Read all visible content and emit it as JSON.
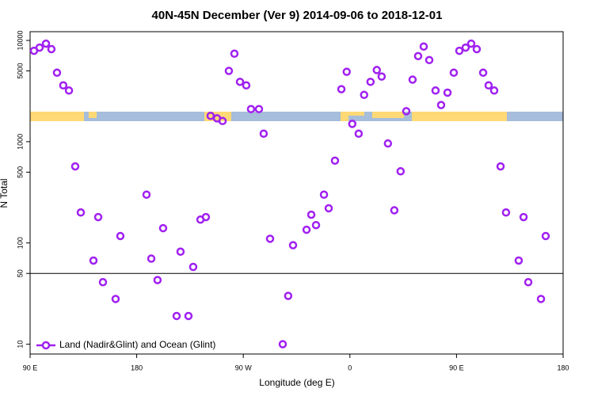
{
  "chart_data": {
    "type": "scatter",
    "title": "40N-45N December (Ver 9)   2014-09-06 to 2018-12-01",
    "x_label": "Longitude (deg E)",
    "y_label": "N Total",
    "log_y": true,
    "hline": 50,
    "legend_position": "bottom-left",
    "xlim": [
      -270,
      180
    ],
    "xticks": [
      {
        "value": -270,
        "label": "90 E"
      },
      {
        "value": -180,
        "label": "180"
      },
      {
        "value": -90,
        "label": "90 W"
      },
      0,
      {
        "value": 90,
        "label": "90 E"
      },
      {
        "value": 180,
        "label": "180"
      }
    ],
    "ylim": [
      8,
      12200
    ],
    "yticks": [
      10,
      50,
      100,
      500,
      1000,
      5000,
      10000
    ],
    "series": [
      {
        "name": "Land (Nadir&Glint) and Ocean (Glint)",
        "color": "#a020f0",
        "x": [
          -266.7,
          -262,
          -256.6,
          -252,
          -247.3,
          -242,
          -237.2,
          -231.9,
          -227.2,
          -216.5,
          -212.5,
          -208.5,
          -197.8,
          -193.8,
          -171.7,
          -167.7,
          -162.4,
          -157.7,
          -146.3,
          -143,
          -136.3,
          -132.3,
          -126.2,
          -121.6,
          -117.6,
          -112.2,
          -107.5,
          -102.2,
          -97.5,
          -92.8,
          -87.5,
          -83.5,
          -76.8,
          -72.8,
          -67.4,
          -56.7,
          -52.1,
          -48,
          -36.6,
          -32.6,
          -28.6,
          -21.9,
          -17.9,
          -12.6,
          -7.2,
          -2.7,
          2,
          7.4,
          12,
          17.4,
          22.7,
          26.8,
          32.1,
          37.5,
          42.8,
          47.6,
          52.9,
          57.6,
          62.3,
          67,
          72.3,
          77,
          82.4,
          87.7,
          92.4,
          97.7,
          102.4,
          107.1,
          112.5,
          117.1,
          121.8,
          127.2,
          131.8,
          142.5,
          146.6,
          150.6,
          161.3,
          165.3
        ],
        "values": [
          7900,
          8500,
          9300,
          8200,
          4800,
          3600,
          3200,
          570,
          200,
          67,
          180,
          41,
          28,
          117,
          300,
          70,
          43,
          140,
          19,
          82,
          19,
          58,
          170,
          180,
          1800,
          1700,
          1600,
          5000,
          7400,
          3900,
          3600,
          2100,
          2100,
          1200,
          110,
          10,
          30,
          95,
          135,
          190,
          150,
          300,
          220,
          650,
          3300,
          4900,
          1500,
          1200,
          2900,
          3900,
          5100,
          4400,
          960,
          210,
          510,
          2000,
          4100,
          7000,
          8700,
          6400,
          3200,
          2300,
          3050,
          4800,
          7900,
          8500,
          9300,
          8200,
          4800,
          3600,
          3200,
          570,
          200,
          67,
          180,
          41,
          28,
          117
        ]
      }
    ]
  }
}
